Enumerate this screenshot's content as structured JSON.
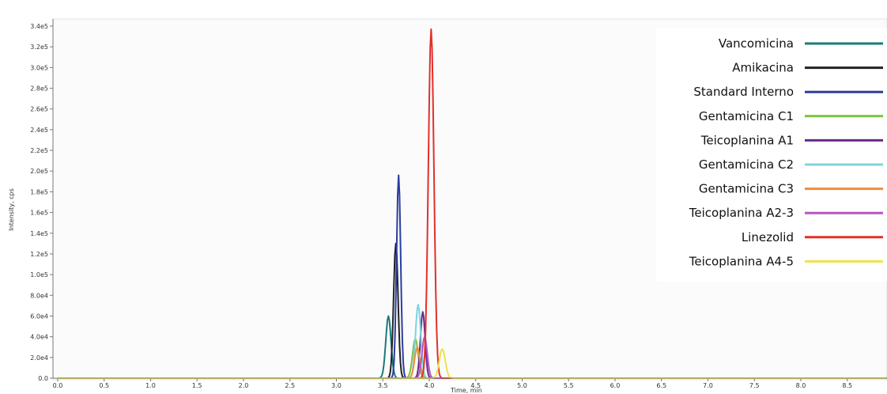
{
  "chart_data": {
    "type": "line",
    "xlabel": "Time, min",
    "ylabel": "Intensity, cps",
    "xlim": [
      0.0,
      9.0
    ],
    "ylim": [
      0,
      340000
    ],
    "x_ticks": [
      "0.0",
      "0.5",
      "1.0",
      "1.5",
      "2.0",
      "2.5",
      "3.0",
      "3.5",
      "4.0",
      "4.5",
      "5.0",
      "5.5",
      "6.0",
      "6.5",
      "7.0",
      "7.5",
      "8.0",
      "8.5"
    ],
    "y_ticks": [
      "0.0",
      "2.0e4",
      "4.0e4",
      "6.0e4",
      "8.0e4",
      "1.0e5",
      "1.2e5",
      "1.4e5",
      "1.6e5",
      "1.8e5",
      "2.0e5",
      "2.2e5",
      "2.4e5",
      "2.6e5",
      "2.8e5",
      "3.0e5",
      "3.2e5",
      "3.4e5"
    ],
    "legend_position": "top-right",
    "series": [
      {
        "name": "Vancomicina",
        "color": "#1a7a7a",
        "peak_time": 3.56,
        "peak_intensity": 60000,
        "width": 0.028
      },
      {
        "name": "Amikacina",
        "color": "#222222",
        "peak_time": 3.64,
        "peak_intensity": 130000,
        "width": 0.024
      },
      {
        "name": "Standard Interno",
        "color": "#2b3ea0",
        "peak_time": 3.67,
        "peak_intensity": 196000,
        "width": 0.022
      },
      {
        "name": "Gentamicina C1",
        "color": "#7cc242",
        "peak_time": 3.85,
        "peak_intensity": 38000,
        "width": 0.03
      },
      {
        "name": "Teicoplanina A1",
        "color": "#6a2a8a",
        "peak_time": 3.93,
        "peak_intensity": 64000,
        "width": 0.025
      },
      {
        "name": "Gentamicina C2",
        "color": "#7fd3e0",
        "peak_time": 3.88,
        "peak_intensity": 71000,
        "width": 0.028
      },
      {
        "name": "Gentamicina C3",
        "color": "#f28c3c",
        "peak_time": 3.87,
        "peak_intensity": 30000,
        "width": 0.028
      },
      {
        "name": "Teicoplanina A2-3",
        "color": "#b657c0",
        "peak_time": 3.95,
        "peak_intensity": 40000,
        "width": 0.028
      },
      {
        "name": "Linezolid",
        "color": "#e2302a",
        "peak_time": 4.02,
        "peak_intensity": 337000,
        "width": 0.03
      },
      {
        "name": "Teicoplanina A4-5",
        "color": "#efe24a",
        "peak_time": 4.14,
        "peak_intensity": 28000,
        "width": 0.032
      }
    ]
  }
}
